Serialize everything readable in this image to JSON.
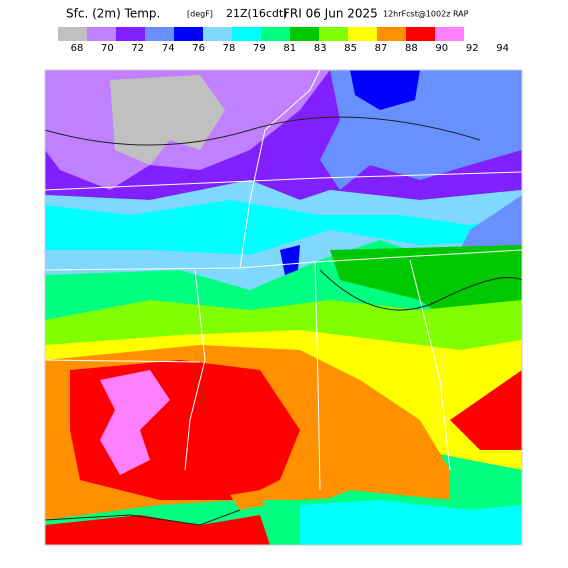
{
  "header": {
    "title_parts": [
      "Sfc. (2m) Temp.",
      "[degF]",
      "21Z(16cdt)",
      "FRI 06 Jun 2025",
      "12hrFcst@1002z RAP"
    ]
  },
  "legend": {
    "colors": [
      "#c0c0c0",
      "#c080ff",
      "#8020ff",
      "#6890ff",
      "#0000ff",
      "#80d8ff",
      "#00ffff",
      "#00ff80",
      "#00c800",
      "#80ff00",
      "#ffff00",
      "#ff9000",
      "#ff0000",
      "#ff80ff"
    ],
    "labels": [
      68,
      70,
      72,
      74,
      76,
      78,
      79,
      81,
      83,
      85,
      87,
      88,
      90,
      92,
      94
    ]
  }
}
